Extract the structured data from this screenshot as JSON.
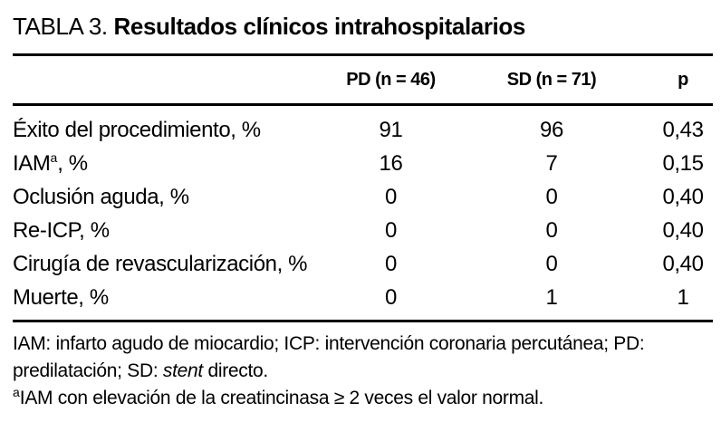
{
  "title": {
    "prefix": "TABLA 3. ",
    "bold": "Resultados clínicos intrahospitalarios"
  },
  "table": {
    "columns": {
      "label": "",
      "pd": "PD (n = 46)",
      "sd": "SD (n = 71)",
      "p": "p"
    },
    "rows": [
      {
        "label": "Éxito del procedimiento, %",
        "sup": "",
        "label_suffix": "",
        "pd": "91",
        "sd": "96",
        "p": "0,43"
      },
      {
        "label": "IAM",
        "sup": "a",
        "label_suffix": ", %",
        "pd": "16",
        "sd": "7",
        "p": "0,15"
      },
      {
        "label": "Oclusión aguda, %",
        "sup": "",
        "label_suffix": "",
        "pd": "0",
        "sd": "0",
        "p": "0,40"
      },
      {
        "label": "Re-ICP, %",
        "sup": "",
        "label_suffix": "",
        "pd": "0",
        "sd": "0",
        "p": "0,40"
      },
      {
        "label": "Cirugía de revascularización, %",
        "sup": "",
        "label_suffix": "",
        "pd": "0",
        "sd": "0",
        "p": "0,40"
      },
      {
        "label": "Muerte, %",
        "sup": "",
        "label_suffix": "",
        "pd": "0",
        "sd": "1",
        "p": "1"
      }
    ]
  },
  "footnotes": {
    "line1": "IAM: infarto agudo de miocardio; ICP: intervención coronaria percutánea; PD:",
    "line2_prefix": "predilatación; SD: ",
    "line2_italic": "stent",
    "line2_suffix": " directo.",
    "line3_sup": "a",
    "line3_text": "IAM con elevación de la creatincinasa ≥ 2 veces el valor normal."
  },
  "chart_data": {
    "type": "table",
    "title": "TABLA 3. Resultados clínicos intrahospitalarios",
    "columns": [
      "",
      "PD (n = 46)",
      "SD (n = 71)",
      "p"
    ],
    "rows": [
      [
        "Éxito del procedimiento, %",
        "91",
        "96",
        "0,43"
      ],
      [
        "IAMa, %",
        "16",
        "7",
        "0,15"
      ],
      [
        "Oclusión aguda, %",
        "0",
        "0",
        "0,40"
      ],
      [
        "Re-ICP, %",
        "0",
        "0",
        "0,40"
      ],
      [
        "Cirugía de revascularización, %",
        "0",
        "0",
        "0,40"
      ],
      [
        "Muerte, %",
        "0",
        "1",
        "1"
      ]
    ]
  }
}
